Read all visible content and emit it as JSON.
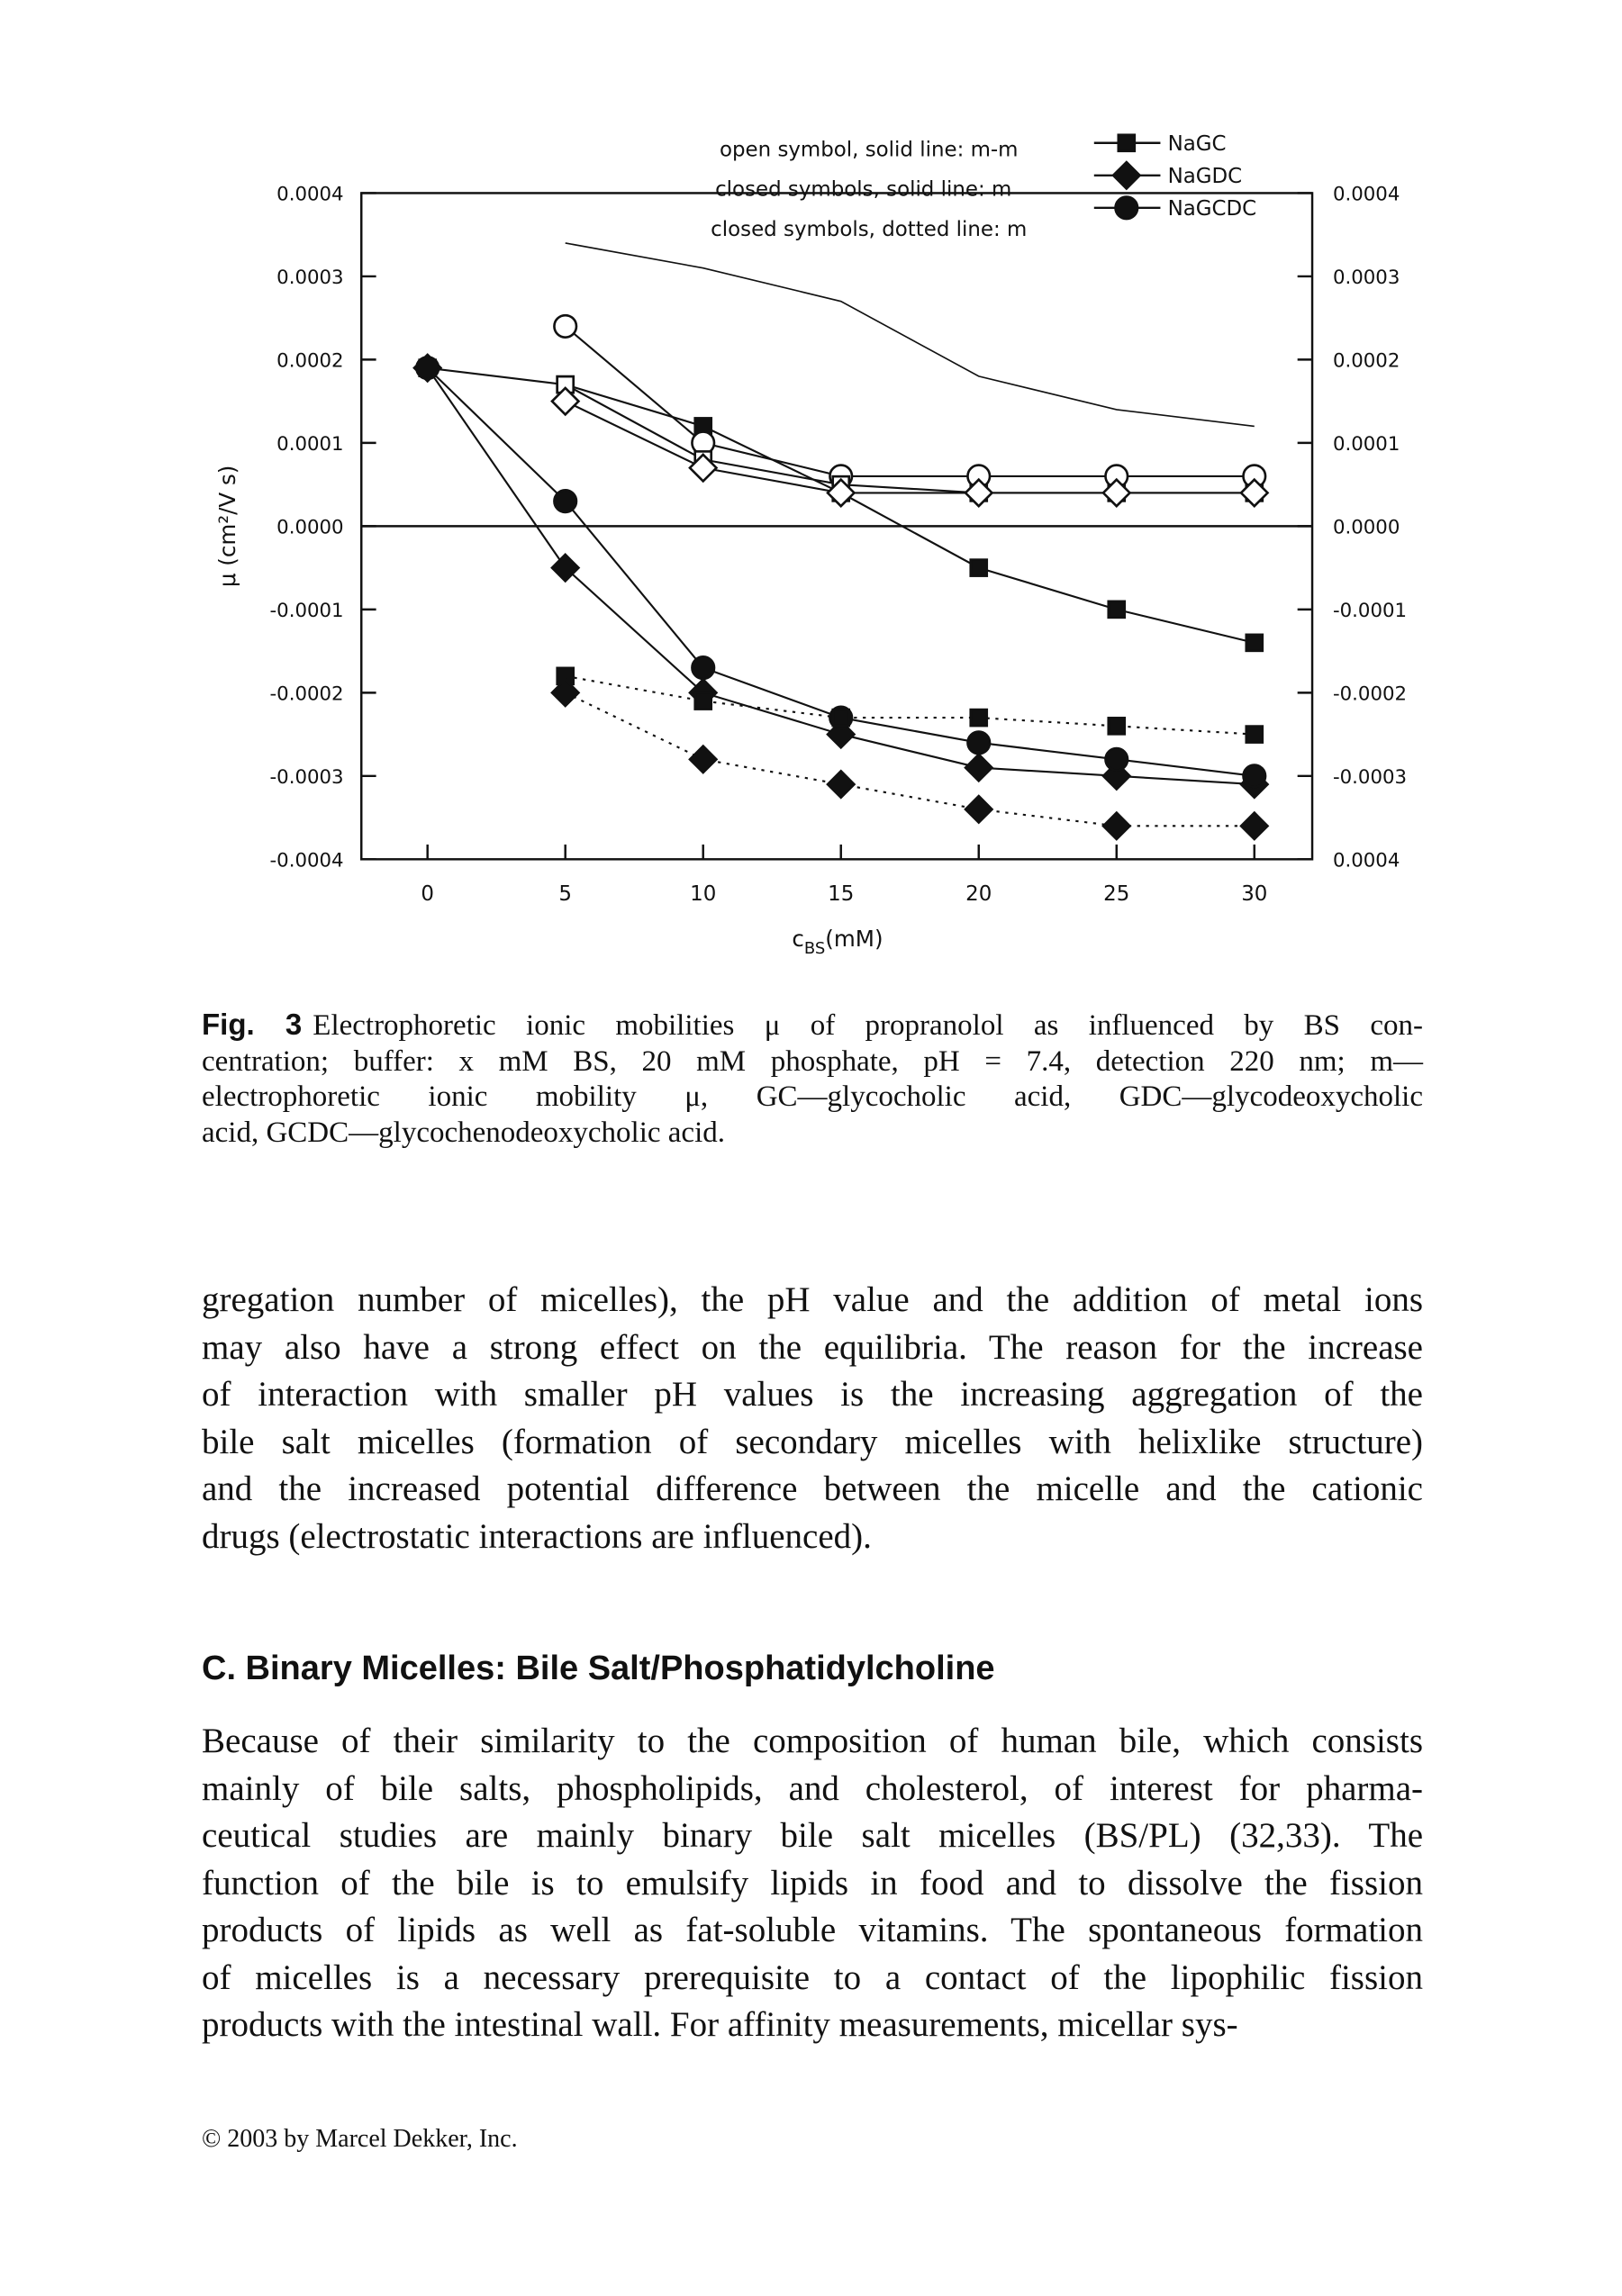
{
  "chart_data": {
    "type": "line",
    "x": [
      0,
      5,
      10,
      15,
      20,
      25,
      30
    ],
    "xlim": [
      -2.4,
      32.1
    ],
    "xticks": [
      0,
      5,
      10,
      15,
      20,
      25,
      30
    ],
    "ylim": [
      -0.0004,
      0.0004
    ],
    "yticks": [
      0.0004,
      0.0003,
      0.0002,
      0.0001,
      {
        "value": 0,
        "label": "0.0000"
      },
      -0.0001,
      -0.0002,
      -0.0003,
      -0.0004
    ],
    "y2lim": [
      -0.0004,
      0.0004
    ],
    "y2ticks": [
      0.0004,
      0.0003,
      0.0002,
      0.0001,
      {
        "value": 0,
        "label": "0.0000"
      },
      -0.0001,
      -0.0002,
      -0.0003,
      {
        "value": -0.0004,
        "label": "0.0004"
      }
    ],
    "y_label": "μ (cm²/V s)",
    "x_label": {
      "symbol": "c",
      "subscript": "BS",
      "unit": "(mM)"
    },
    "annotations": [
      "open symbol, solid line: m-m",
      "closed symbols, solid line: m",
      "closed symbols, dotted line: m"
    ],
    "legend": "top right",
    "series": [
      {
        "name": "NaGC",
        "color": "#111111",
        "marker": "square",
        "filled": true,
        "dash": false,
        "values": [
          0.00019,
          0.00017,
          0.00012,
          4e-05,
          -5e-05,
          -0.0001,
          -0.00014
        ]
      },
      {
        "name": "NaGDC",
        "color": "#111111",
        "marker": "diamond",
        "filled": true,
        "dash": false,
        "values": [
          0.00019,
          -5e-05,
          -0.0002,
          -0.00025,
          -0.00029,
          -0.0003,
          -0.00031
        ]
      },
      {
        "name": "NaGCDC",
        "color": "#111111",
        "marker": "circle",
        "filled": true,
        "dash": false,
        "values": [
          0.00019,
          3e-05,
          -0.00017,
          -0.00023,
          -0.00026,
          -0.00028,
          -0.0003
        ]
      },
      {
        "color": "#111111",
        "marker": "circle",
        "filled": false,
        "dash": false,
        "values": [
          null,
          0.00024,
          0.0001,
          6e-05,
          6e-05,
          6e-05,
          6e-05
        ]
      },
      {
        "color": "#111111",
        "marker": "square",
        "filled": false,
        "dash": false,
        "values": [
          null,
          0.00017,
          8e-05,
          5e-05,
          4e-05,
          4e-05,
          4e-05
        ]
      },
      {
        "color": "#111111",
        "marker": "diamond",
        "filled": false,
        "dash": false,
        "values": [
          null,
          0.00015,
          7e-05,
          4e-05,
          4e-05,
          4e-05,
          4e-05
        ]
      },
      {
        "color": "#111111",
        "marker": "square",
        "filled": true,
        "dash": true,
        "values": [
          null,
          -0.00018,
          -0.00021,
          -0.00023,
          -0.00023,
          -0.00024,
          -0.00025
        ]
      },
      {
        "color": "#111111",
        "marker": "diamond",
        "filled": true,
        "dash": true,
        "values": [
          null,
          -0.0002,
          -0.00028,
          -0.00031,
          -0.00034,
          -0.00036,
          -0.00036
        ]
      },
      {
        "color": "#111111",
        "marker": "none",
        "filled": false,
        "dash": false,
        "values": [
          null,
          0.00034,
          0.00031,
          0.00027,
          0.00018,
          0.00014,
          0.00012
        ]
      }
    ]
  },
  "caption": {
    "label": "Fig. 3",
    "lines": [
      "Electrophoretic ionic mobilities μ of propranolol as influenced by BS con-",
      "centration; buffer: x mM BS, 20 mM phosphate, pH = 7.4, detection 220 nm; m—",
      "electrophoretic ionic mobility μ, GC—glycocholic acid, GDC—glycodeoxycholic",
      "acid, GCDC—glycochenodeoxycholic acid."
    ]
  },
  "paragraph_1": [
    "gregation number of micelles), the pH value and the addition of metal ions",
    "may also have a strong effect on the equilibria. The reason for the increase",
    "of interaction with smaller pH values is the increasing aggregation of the",
    "bile salt micelles (formation of secondary micelles with helixlike structure)",
    "and the increased potential difference between the micelle and the cationic",
    "drugs (electrostatic interactions are influenced)."
  ],
  "section_heading": "C.  Binary Micelles: Bile Salt/Phosphatidylcholine",
  "paragraph_2": [
    "Because of their similarity to the composition of human bile, which consists",
    "mainly of bile salts, phospholipids, and cholesterol, of interest for pharma-",
    "ceutical studies are mainly binary bile salt micelles (BS/PL) (32,33). The",
    "function of the bile is to emulsify lipids in food and to dissolve the fission",
    "products of lipids as well as fat-soluble vitamins. The spontaneous formation",
    "of micelles is a necessary prerequisite to a contact of the lipophilic fission",
    "products with the intestinal wall. For affinity measurements, micellar sys-"
  ],
  "footer": "© 2003 by Marcel Dekker, Inc."
}
